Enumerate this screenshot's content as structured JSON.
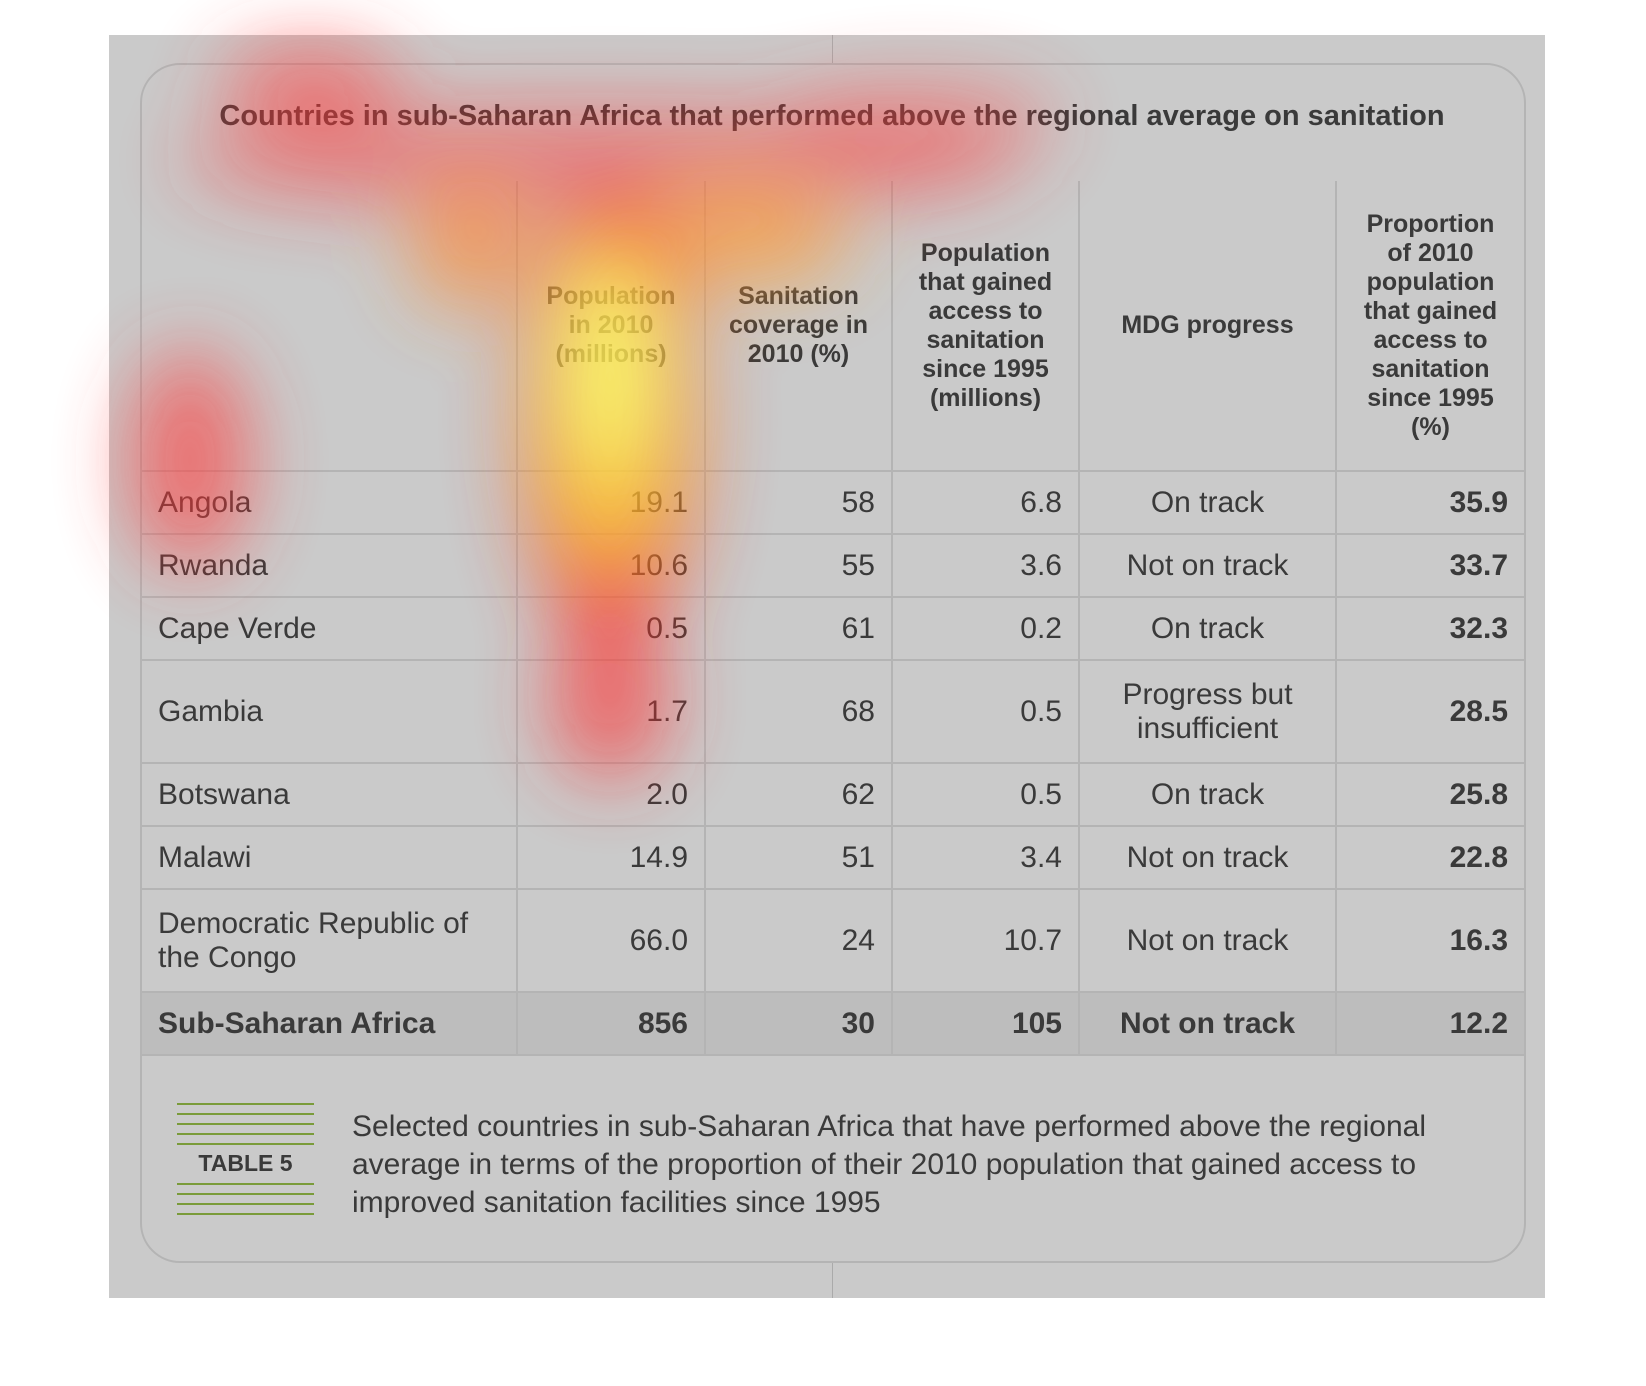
{
  "header": {
    "title": "Countries in sub-Saharan Africa that performed above the regional average on sanitation"
  },
  "table": {
    "columns": [
      "Population in 2010 (millions)",
      "Sanitation coverage in 2010 (%)",
      "Population that gained access to sanitation since 1995 (millions)",
      "MDG progress",
      "Proportion of 2010 population that gained access to sanitation since 1995 (%)"
    ],
    "rows": [
      [
        "Angola",
        "19.1",
        "58",
        "6.8",
        "On track",
        "35.9"
      ],
      [
        "Rwanda",
        "10.6",
        "55",
        "3.6",
        "Not on track",
        "33.7"
      ],
      [
        "Cape Verde",
        "0.5",
        "61",
        "0.2",
        "On track",
        "32.3"
      ],
      [
        "Gambia",
        "1.7",
        "68",
        "0.5",
        "Progress but insufficient",
        "28.5"
      ],
      [
        "Botswana",
        "2.0",
        "62",
        "0.5",
        "On track",
        "25.8"
      ],
      [
        "Malawi",
        "14.9",
        "51",
        "3.4",
        "Not on track",
        "22.8"
      ],
      [
        "Democratic Republic of the Congo",
        "66.0",
        "24",
        "10.7",
        "Not on track",
        "16.3"
      ]
    ],
    "total": [
      "Sub-Saharan Africa",
      "856",
      "30",
      "105",
      "Not on track",
      "12.2"
    ]
  },
  "caption": {
    "label": "TABLE 5",
    "text": "Selected countries in sub-Saharan Africa that have performed above the regional average in terms of the proportion of their 2010 population that gained access to improved sanitation facilities since 1995"
  }
}
